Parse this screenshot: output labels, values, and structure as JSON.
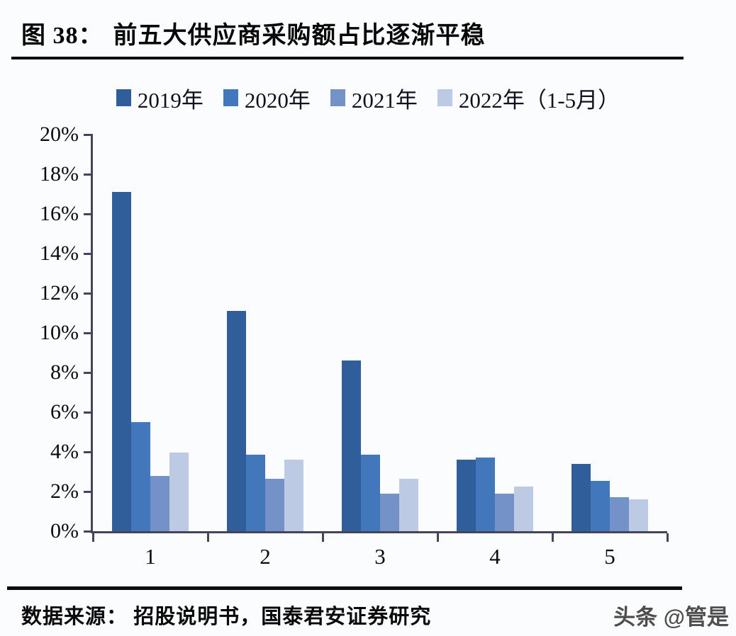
{
  "figure": {
    "label": "图 38：",
    "title": "前五大供应商采购额占比逐渐平稳"
  },
  "source": {
    "text": "数据来源：  招股说明书，国泰君安证券研究"
  },
  "watermark": {
    "text": "头条 @管是"
  },
  "colors": {
    "series_2019": "#2F5E9B",
    "series_2020": "#4377BB",
    "series_2021": "#7492C8",
    "series_2022": "#BCCAE4",
    "axis": "#44445A",
    "title_text": "#070707",
    "background": "#FAFCFE"
  },
  "chart_data": {
    "type": "bar",
    "title": "图 38： 前五大供应商采购额占比逐渐平稳",
    "categories": [
      "1",
      "2",
      "3",
      "4",
      "5"
    ],
    "series": [
      {
        "name": "2019年",
        "color": "#2F5E9B",
        "values": [
          17.1,
          11.1,
          8.6,
          3.6,
          3.4
        ]
      },
      {
        "name": "2020年",
        "color": "#4377BB",
        "values": [
          5.5,
          3.85,
          3.85,
          3.7,
          2.55
        ]
      },
      {
        "name": "2021年",
        "color": "#7492C8",
        "values": [
          2.8,
          2.65,
          1.9,
          1.9,
          1.7
        ]
      },
      {
        "name": "2022年（1-5月）",
        "color": "#BCCAE4",
        "values": [
          3.95,
          3.6,
          2.65,
          2.25,
          1.6
        ]
      }
    ],
    "xlabel": "",
    "ylabel": "",
    "ylim": [
      0,
      20
    ],
    "ytick_step": 2,
    "ytick_suffix": "%",
    "grid": false,
    "legend_position": "top"
  }
}
